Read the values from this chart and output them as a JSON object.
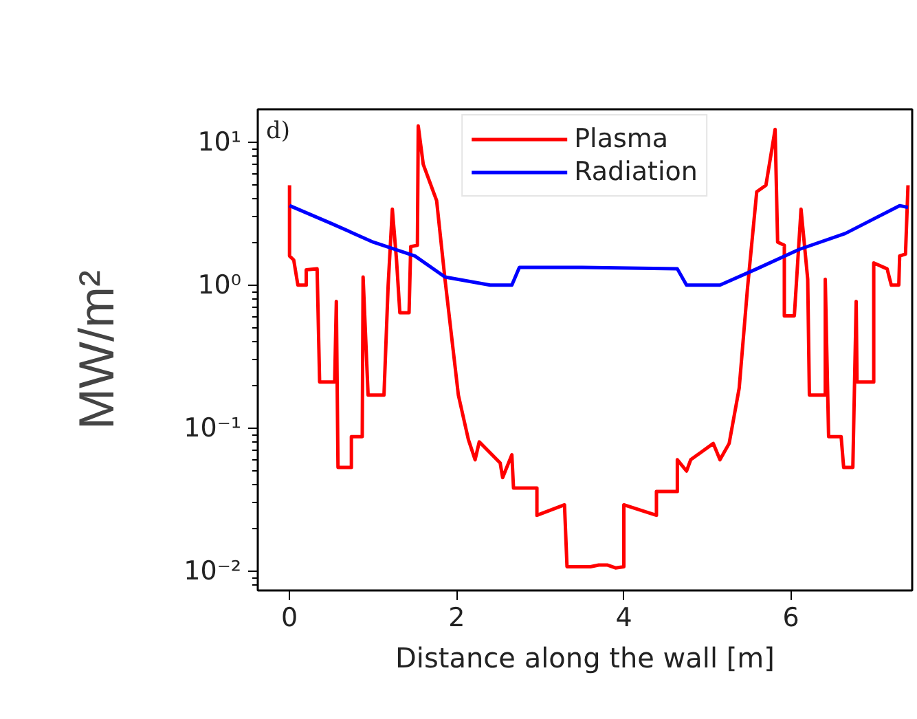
{
  "chart_data": {
    "type": "line",
    "xlabel": "Distance along the wall [m]",
    "ylabel": "MW/m²",
    "annotations": [
      "d)"
    ],
    "log": "y",
    "grid": false,
    "legend": "top",
    "line_style": "solid",
    "marker": "none",
    "xlim": [
      -0.38,
      7.45
    ],
    "xticks": [
      0,
      2,
      4,
      6
    ],
    "ylim": [
      0.0073,
      17
    ],
    "yticks": [
      {
        "value": 0.01,
        "label": "10⁻²"
      },
      {
        "value": 0.1,
        "label": "10⁻¹"
      },
      {
        "value": 1,
        "label": "10⁰"
      },
      {
        "value": 10,
        "label": "10¹"
      }
    ],
    "series": [
      {
        "name": "Plasma",
        "color": "#ff0000",
        "x": [
          0,
          0,
          0.05,
          0.1,
          0.2,
          0.2,
          0.33,
          0.36,
          0.54,
          0.56,
          0.58,
          0.74,
          0.74,
          0.87,
          0.88,
          0.94,
          1.13,
          1.18,
          1.23,
          1.28,
          1.32,
          1.43,
          1.45,
          1.53,
          1.54,
          1.6,
          1.76,
          1.86,
          2.02,
          2.14,
          2.22,
          2.27,
          2.52,
          2.55,
          2.66,
          2.68,
          2.96,
          2.96,
          3.29,
          3.32,
          3.6,
          3.7,
          3.8,
          3.9,
          4.0,
          4.0,
          4.39,
          4.39,
          4.64,
          4.64,
          4.75,
          4.8,
          5.07,
          5.15,
          5.26,
          5.38,
          5.48,
          5.59,
          5.7,
          5.81,
          5.84,
          5.92,
          5.92,
          6.04,
          6.12,
          6.2,
          6.22,
          6.41,
          6.41,
          6.45,
          6.6,
          6.63,
          6.74,
          6.78,
          6.79,
          6.99,
          6.99,
          7.15,
          7.2,
          7.29,
          7.3,
          7.37,
          7.4
        ],
        "values": [
          5.0,
          1.6,
          1.5,
          1.0,
          1.0,
          1.28,
          1.3,
          0.21,
          0.21,
          0.77,
          0.053,
          0.053,
          0.087,
          0.087,
          1.14,
          0.17,
          0.17,
          1.0,
          3.4,
          1.5,
          0.64,
          0.64,
          1.86,
          1.9,
          13,
          7,
          3.9,
          1.1,
          0.17,
          0.083,
          0.06,
          0.08,
          0.057,
          0.045,
          0.065,
          0.038,
          0.038,
          0.0245,
          0.029,
          0.0107,
          0.0107,
          0.011,
          0.011,
          0.0105,
          0.0107,
          0.029,
          0.0245,
          0.036,
          0.036,
          0.06,
          0.05,
          0.06,
          0.078,
          0.06,
          0.078,
          0.19,
          0.96,
          4.5,
          5,
          12.3,
          2.0,
          1.9,
          0.61,
          0.61,
          3.4,
          1.1,
          0.17,
          0.17,
          1.1,
          0.087,
          0.087,
          0.053,
          0.053,
          0.77,
          0.21,
          0.21,
          1.43,
          1.3,
          1.0,
          1.0,
          1.6,
          1.65,
          5.0
        ]
      },
      {
        "name": "Radiation",
        "color": "#0000ff",
        "x": [
          0,
          0.5,
          1.0,
          1.5,
          1.86,
          2.4,
          2.66,
          2.75,
          3.5,
          4.64,
          4.75,
          5.15,
          5.59,
          6.1,
          6.65,
          7.3,
          7.4
        ],
        "values": [
          3.6,
          2.7,
          2.0,
          1.6,
          1.14,
          1.0,
          1.0,
          1.33,
          1.33,
          1.3,
          1.0,
          1.0,
          1.3,
          1.78,
          2.3,
          3.6,
          3.5
        ]
      }
    ]
  }
}
